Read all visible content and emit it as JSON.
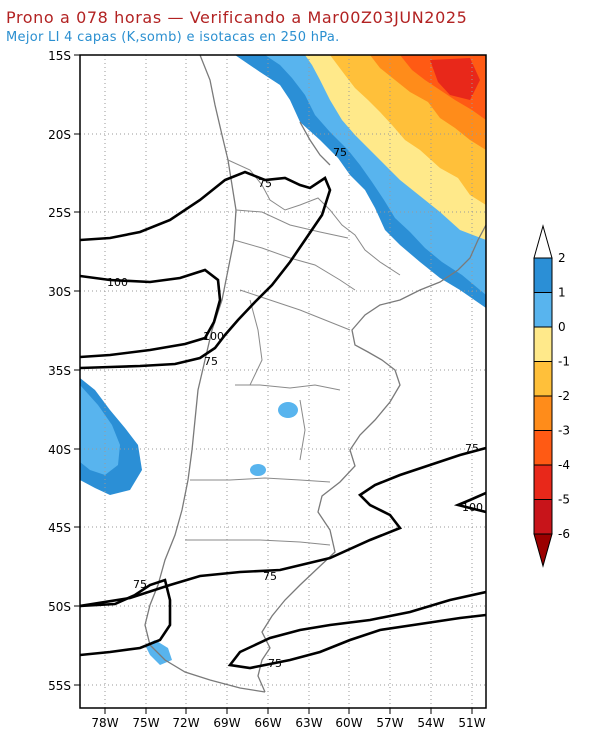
{
  "header": {
    "title": "Prono a 078 horas — Verificando a Mar00Z03JUN2025",
    "subtitle": "Mejor LI 4 capas (K,somb) e isotacas en 250 hPa."
  },
  "map": {
    "lat_labels": [
      "15S",
      "20S",
      "25S",
      "30S",
      "35S",
      "40S",
      "45S",
      "50S",
      "55S"
    ],
    "lon_labels": [
      "78W",
      "75W",
      "72W",
      "69W",
      "66W",
      "63W",
      "60W",
      "57W",
      "54W",
      "51W"
    ],
    "isotach_labels": [
      "75",
      "75",
      "100",
      "100",
      "75",
      "75",
      "100",
      "75",
      "75",
      "75"
    ]
  },
  "colorbar": {
    "ticks": [
      "2",
      "1",
      "0",
      "-1",
      "-2",
      "-3",
      "-4",
      "-5",
      "-6"
    ],
    "colors": [
      "#2b8fd6",
      "#58b4ee",
      "#ffe98a",
      "#ffc03a",
      "#ff8c1a",
      "#ff5a14",
      "#e8281a",
      "#c8141a",
      "#9b0000"
    ],
    "over_color": "#ffffff",
    "under_color": "#9b0000"
  }
}
